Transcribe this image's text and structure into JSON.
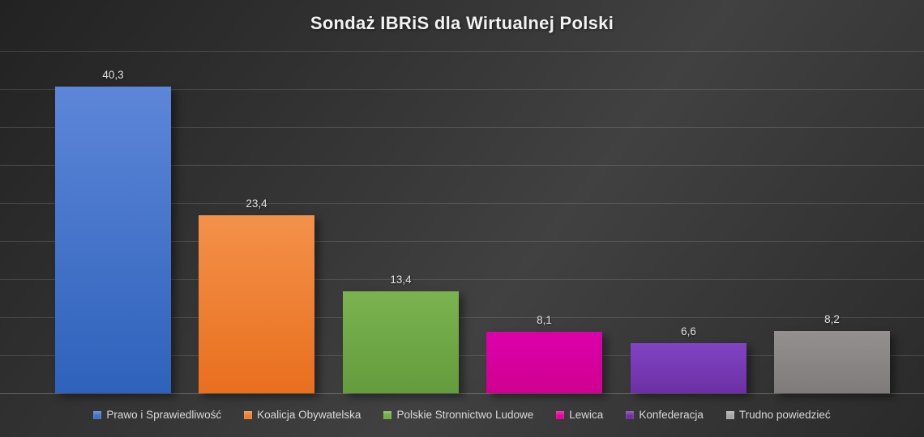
{
  "title": "Sondaż IBRiS dla Wirtualnej Polski",
  "chart_data": {
    "type": "bar",
    "title": "Sondaż IBRiS dla Wirtualnej Polski",
    "categories": [
      "Prawo i Sprawiedliwość",
      "Koalicja Obywatelska",
      "Polskie Stronnictwo Ludowe",
      "Lewica",
      "Konfederacja",
      "Trudno powiedzieć"
    ],
    "values": [
      40.3,
      23.4,
      13.4,
      8.1,
      6.6,
      8.2
    ],
    "value_labels": [
      "40,3",
      "23,4",
      "13,4",
      "8,1",
      "6,6",
      "8,2"
    ],
    "decimal_separator": ",",
    "xlabel": "",
    "ylabel": "",
    "ylim": [
      0,
      45
    ],
    "grid_step": 5,
    "grid": true,
    "y_axis_labels_visible": false,
    "legend_position": "bottom",
    "bar_colors": [
      {
        "top": "#5d86d8",
        "bottom": "#2e62bb",
        "legend": "#4472c4"
      },
      {
        "top": "#f3914a",
        "bottom": "#e96f1e",
        "legend": "#ed7d31"
      },
      {
        "top": "#7ab34f",
        "bottom": "#649c3d",
        "legend": "#70ad47"
      },
      {
        "top": "#dd00ab",
        "bottom": "#cf008f",
        "legend": "#e0009c"
      },
      {
        "top": "#8044c4",
        "bottom": "#6c2fa4",
        "legend": "#7030a0"
      },
      {
        "top": "#949090",
        "bottom": "#7f7b7b",
        "legend": "#a6a6a6"
      }
    ]
  },
  "colors": {
    "background_dark": "#262626",
    "background_light": "#414141",
    "gridline": "#565656",
    "title_text": "#f2f2f2",
    "value_label_text": "#e2e2e2",
    "legend_text": "#d9d9d9"
  }
}
